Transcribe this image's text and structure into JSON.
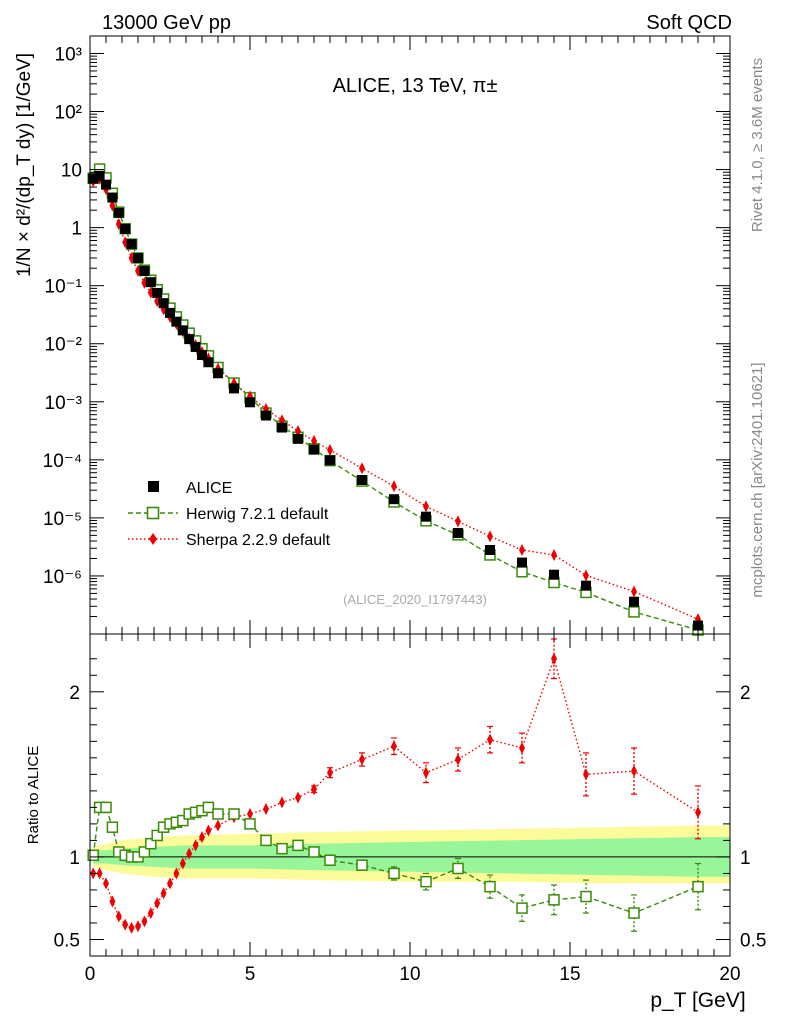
{
  "header": {
    "process": "13000 GeV pp",
    "generator_tag": "Soft QCD"
  },
  "side_labels": {
    "rivet": "Rivet 4.1.0, ≥ 3.6M events",
    "mcplots": "mcplots.cern.ch [arXiv:2401.10621]"
  },
  "colors": {
    "data": "#000000",
    "herwig": "#3a8a0a",
    "sherpa": "#ee0000",
    "band_inner": "#99f599",
    "band_outer": "#fbfb99"
  },
  "chart_data": [
    {
      "type": "scatter",
      "panel": "main",
      "title": "ALICE, 13 TeV, π±",
      "analysis_id": "(ALICE_2020_I1797443)",
      "xlabel": "p_T [GeV]",
      "ylabel": "1/N × d²/(dp_T dy) [1/GeV]",
      "xlim": [
        0,
        20
      ],
      "ylim": [
        1e-07,
        2000
      ],
      "yscale": "log",
      "ytick_labels": [
        "10⁻⁶",
        "10⁻⁵",
        "10⁻⁴",
        "10⁻³",
        "10⁻²",
        "10⁻¹",
        "1",
        "10",
        "10²",
        "10³"
      ],
      "legend": {
        "placement": "bottom-left",
        "entries": [
          "ALICE",
          "Herwig 7.2.1 default",
          "Sherpa 2.2.9 default"
        ]
      },
      "x": [
        0.1,
        0.3,
        0.5,
        0.7,
        0.9,
        1.1,
        1.3,
        1.5,
        1.7,
        1.9,
        2.1,
        2.3,
        2.5,
        2.7,
        2.9,
        3.1,
        3.3,
        3.5,
        3.7,
        4.0,
        4.5,
        5.0,
        5.5,
        6.0,
        6.5,
        7.0,
        7.5,
        8.5,
        9.5,
        10.5,
        11.5,
        12.5,
        13.5,
        14.5,
        15.5,
        17.0,
        19.0
      ],
      "series": [
        {
          "name": "ALICE",
          "marker": "filled-square",
          "values": [
            7.0,
            7.8,
            5.5,
            3.3,
            1.8,
            0.95,
            0.52,
            0.3,
            0.18,
            0.115,
            0.075,
            0.05,
            0.034,
            0.024,
            0.017,
            0.012,
            0.0088,
            0.0064,
            0.0048,
            0.0031,
            0.0017,
            0.00098,
            0.00058,
            0.00036,
            0.00023,
            0.00015,
            9.8e-05,
            4.5e-05,
            2.1e-05,
            1.05e-05,
            5.5e-06,
            2.8e-06,
            1.7e-06,
            1.05e-06,
            6.8e-07,
            3.6e-07,
            1.4e-07
          ]
        },
        {
          "name": "Herwig 7.2.1 default",
          "marker": "open-square",
          "line": "dashed",
          "values": [
            7.1,
            10.2,
            7.2,
            3.9,
            1.85,
            0.96,
            0.52,
            0.3,
            0.185,
            0.124,
            0.085,
            0.059,
            0.041,
            0.029,
            0.021,
            0.0152,
            0.0112,
            0.0082,
            0.0062,
            0.0039,
            0.0021,
            0.00117,
            0.00064,
            0.00038,
            0.000245,
            0.000155,
            9.7e-05,
            4.3e-05,
            1.88e-05,
            8.9e-06,
            5.1e-06,
            2.3e-06,
            1.18e-06,
            7.7e-07,
            5.2e-07,
            2.4e-07,
            1.17e-07
          ]
        },
        {
          "name": "Sherpa 2.2.9 default",
          "marker": "filled-diamond",
          "line": "dotted",
          "values": [
            6.3,
            7.0,
            4.6,
            2.4,
            1.15,
            0.56,
            0.3,
            0.18,
            0.112,
            0.076,
            0.054,
            0.039,
            0.029,
            0.022,
            0.0164,
            0.0123,
            0.0095,
            0.0072,
            0.0056,
            0.0037,
            0.0021,
            0.00124,
            0.00075,
            0.00048,
            0.000313,
            0.000212,
            0.000148,
            7.16e-05,
            3.5e-05,
            1.58e-05,
            8.7e-06,
            4.8e-06,
            2.8e-06,
            2.3e-06,
            1.02e-06,
            5.4e-07,
            1.8e-07
          ]
        }
      ]
    },
    {
      "type": "scatter",
      "panel": "ratio",
      "ylabel": "Ratio to ALICE",
      "xlabel": "p_T [GeV]",
      "xlim": [
        0,
        20
      ],
      "ylim": [
        0.4,
        2.35
      ],
      "yticks": [
        0.5,
        1,
        2
      ],
      "xticks": [
        0,
        5,
        10,
        15,
        20
      ],
      "reference_line": 1,
      "band": {
        "x": [
          0.1,
          0.5,
          1.0,
          2.0,
          3.0,
          5.0,
          7.0,
          10.0,
          13.0,
          16.0,
          19.0,
          20.0
        ],
        "inner_lo": [
          0.96,
          0.96,
          0.95,
          0.94,
          0.93,
          0.93,
          0.92,
          0.91,
          0.9,
          0.89,
          0.88,
          0.88
        ],
        "inner_hi": [
          1.04,
          1.04,
          1.05,
          1.06,
          1.07,
          1.07,
          1.08,
          1.09,
          1.1,
          1.11,
          1.12,
          1.12
        ],
        "outer_lo": [
          0.94,
          0.92,
          0.9,
          0.88,
          0.87,
          0.87,
          0.86,
          0.85,
          0.85,
          0.84,
          0.84,
          0.84
        ],
        "outer_hi": [
          1.06,
          1.08,
          1.1,
          1.12,
          1.13,
          1.14,
          1.15,
          1.16,
          1.17,
          1.18,
          1.19,
          1.19
        ]
      },
      "x": [
        0.1,
        0.3,
        0.5,
        0.7,
        0.9,
        1.1,
        1.3,
        1.5,
        1.7,
        1.9,
        2.1,
        2.3,
        2.5,
        2.7,
        2.9,
        3.1,
        3.3,
        3.5,
        3.7,
        4.0,
        4.5,
        5.0,
        5.5,
        6.0,
        6.5,
        7.0,
        7.5,
        8.5,
        9.5,
        10.5,
        11.5,
        12.5,
        13.5,
        14.5,
        15.5,
        17.0,
        19.0
      ],
      "series": [
        {
          "name": "Herwig 7.2.1 default",
          "marker": "open-square",
          "line": "dashed",
          "values": [
            1.01,
            1.3,
            1.3,
            1.18,
            1.03,
            1.01,
            1.0,
            1.0,
            1.03,
            1.08,
            1.13,
            1.18,
            1.2,
            1.21,
            1.22,
            1.26,
            1.27,
            1.28,
            1.3,
            1.26,
            1.26,
            1.2,
            1.1,
            1.05,
            1.07,
            1.03,
            0.98,
            0.95,
            0.9,
            0.85,
            0.93,
            0.82,
            0.69,
            0.74,
            0.76,
            0.66,
            0.82
          ],
          "errors": [
            0.01,
            0.01,
            0.01,
            0.01,
            0.01,
            0.01,
            0.01,
            0.01,
            0.01,
            0.01,
            0.01,
            0.01,
            0.01,
            0.01,
            0.01,
            0.01,
            0.01,
            0.01,
            0.01,
            0.01,
            0.01,
            0.01,
            0.01,
            0.01,
            0.01,
            0.02,
            0.02,
            0.03,
            0.04,
            0.05,
            0.06,
            0.07,
            0.08,
            0.09,
            0.1,
            0.11,
            0.14
          ]
        },
        {
          "name": "Sherpa 2.2.9 default",
          "marker": "filled-diamond",
          "line": "dotted",
          "values": [
            0.9,
            0.9,
            0.84,
            0.73,
            0.64,
            0.59,
            0.57,
            0.58,
            0.61,
            0.66,
            0.72,
            0.78,
            0.84,
            0.9,
            0.96,
            1.02,
            1.07,
            1.12,
            1.16,
            1.19,
            1.24,
            1.26,
            1.29,
            1.33,
            1.36,
            1.41,
            1.51,
            1.59,
            1.67,
            1.51,
            1.59,
            1.71,
            1.66,
            2.2,
            1.5,
            1.52,
            1.27
          ],
          "errors": [
            0.01,
            0.01,
            0.01,
            0.01,
            0.01,
            0.01,
            0.01,
            0.01,
            0.01,
            0.01,
            0.01,
            0.01,
            0.01,
            0.01,
            0.01,
            0.01,
            0.01,
            0.01,
            0.01,
            0.01,
            0.01,
            0.01,
            0.01,
            0.01,
            0.01,
            0.02,
            0.03,
            0.04,
            0.05,
            0.06,
            0.07,
            0.08,
            0.09,
            0.12,
            0.13,
            0.14,
            0.16
          ]
        }
      ]
    }
  ]
}
